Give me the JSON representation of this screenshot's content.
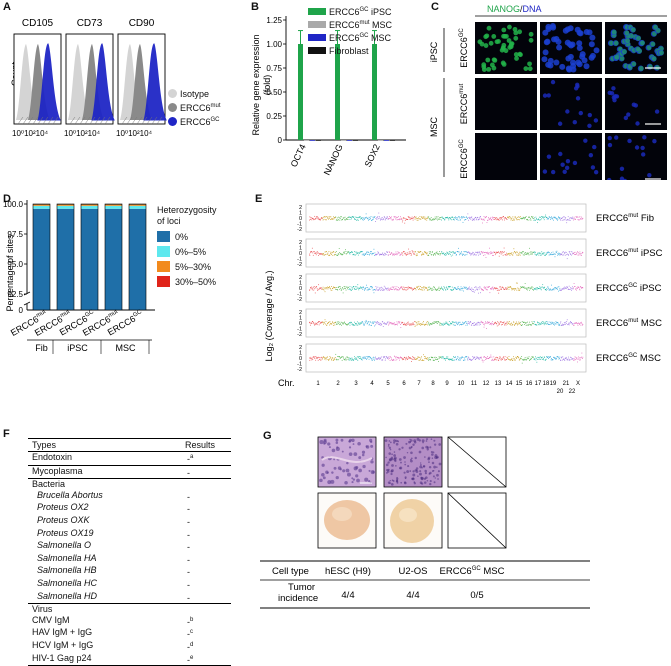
{
  "panels": {
    "A": "A",
    "B": "B",
    "C": "C",
    "D": "D",
    "E": "E",
    "F": "F",
    "G": "G"
  },
  "panelA": {
    "ylabel": "Count",
    "markers": [
      "CD105",
      "CD73",
      "CD90"
    ],
    "xtick": "10⁰10²10⁴",
    "legend": [
      {
        "label": "Isotype",
        "color": "#d4d4d4"
      },
      {
        "label": "ERCC6",
        "sup": "mut",
        "color": "#8a8a8a"
      },
      {
        "label": "ERCC6",
        "sup": "GC",
        "color": "#1f26c6"
      }
    ]
  },
  "panelB": {
    "ylabel": "Relative gene expression",
    "ylabel2": "(fold)",
    "yticks": [
      "0",
      "0.25",
      "0.50",
      "0.75",
      "1.00",
      "1.25"
    ],
    "legend": [
      {
        "label": "ERCC6",
        "sup": "GC",
        "suffix": " iPSC",
        "color": "#1fa44a"
      },
      {
        "label": "ERCC6",
        "sup": "mut",
        "suffix": " MSC",
        "color": "#a9a9a9"
      },
      {
        "label": "ERCC6",
        "sup": "GC",
        "suffix": " MSC",
        "color": "#1f26c6"
      },
      {
        "label": "Fibroblast",
        "sup": "",
        "suffix": "",
        "color": "#111111"
      }
    ]
  },
  "chart_data": {
    "type": "bar",
    "categories": [
      "OCT4",
      "NANOG",
      "SOX2"
    ],
    "ylim": [
      0,
      1.25
    ],
    "series": [
      {
        "name": "ERCC6GC iPSC",
        "values": [
          1.0,
          1.0,
          1.0
        ],
        "error": [
          0.14,
          0.14,
          0.14
        ]
      },
      {
        "name": "ERCC6mut MSC",
        "values": [
          0.0,
          0.0,
          0.0
        ]
      },
      {
        "name": "ERCC6GC MSC",
        "values": [
          0.0,
          0.0,
          0.0
        ]
      },
      {
        "name": "Fibroblast",
        "values": [
          0.0,
          0.0,
          0.0
        ]
      }
    ]
  },
  "panelC": {
    "title_green": "NANOG",
    "title_sep": "/",
    "title_blue": "DNA",
    "groups": [
      "iPSC",
      "MSC"
    ],
    "rows": [
      {
        "label": "ERCC6",
        "sup": "GC"
      },
      {
        "label": "ERCC6",
        "sup": "mut"
      },
      {
        "label": "ERCC6",
        "sup": "GC"
      }
    ]
  },
  "panelD": {
    "ylabel": "Percentage of sites",
    "yticks": [
      "92.5",
      "95.0",
      "97.5",
      "100.0"
    ],
    "ytick_zero": "0",
    "legend_title": "Heterozygosity",
    "legend_title2": "of loci",
    "legend": [
      {
        "label": "0%",
        "color": "#1f6fa8"
      },
      {
        "label": "0%–5%",
        "color": "#5ee8ee"
      },
      {
        "label": "5%–30%",
        "color": "#f28a1d"
      },
      {
        "label": "30%–50%",
        "color": "#e0241a"
      }
    ],
    "bars": [
      {
        "label": "ERCC6",
        "sup": "mut"
      },
      {
        "label": "ERCC6",
        "sup": "mut"
      },
      {
        "label": "ERCC6",
        "sup": "GC"
      },
      {
        "label": "ERCC6",
        "sup": "mut"
      },
      {
        "label": "ERCC6",
        "sup": "GC"
      }
    ],
    "groups": [
      "Fib",
      "iPSC",
      "MSC"
    ]
  },
  "panelE": {
    "ylabel": "Log₂ (Coverage / Avg.)",
    "yticks": [
      "2",
      "1",
      "0",
      "-1",
      "-2"
    ],
    "chr_label": "Chr.",
    "chrs_top": [
      "1",
      "2",
      "3",
      "4",
      "5",
      "6",
      "7",
      "8",
      "9",
      "10",
      "11",
      "12",
      "13",
      "14",
      "15",
      "16",
      "17",
      "18",
      "19",
      "21",
      "X"
    ],
    "chrs_bottom": [
      "20",
      "22"
    ],
    "tracks": [
      {
        "label": "ERCC6",
        "sup": "mut",
        "suffix": " Fib"
      },
      {
        "label": "ERCC6",
        "sup": "mut",
        "suffix": " iPSC"
      },
      {
        "label": "ERCC6",
        "sup": "GC",
        "suffix": " iPSC"
      },
      {
        "label": "ERCC6",
        "sup": "mut",
        "suffix": " MSC"
      },
      {
        "label": "ERCC6",
        "sup": "GC",
        "suffix": " MSC"
      }
    ]
  },
  "panelF": {
    "header": [
      "Types",
      "Results"
    ],
    "rows": [
      {
        "type": "Endotoxin",
        "result": "-",
        "note": "a",
        "italic": false,
        "section_end": true
      },
      {
        "type": "Mycoplasma",
        "result": "-",
        "note": "",
        "italic": false,
        "section_end": true
      },
      {
        "type": "Bacteria",
        "result": "",
        "note": "",
        "italic": false,
        "section_end": false
      },
      {
        "type": "Brucella Abortus",
        "result": "-",
        "note": "",
        "italic": true,
        "section_end": false
      },
      {
        "type": "Proteus OX2",
        "result": "-",
        "note": "",
        "italic": true,
        "section_end": false
      },
      {
        "type": "Proteus OXK",
        "result": "-",
        "note": "",
        "italic": true,
        "section_end": false
      },
      {
        "type": "Proteus OX19",
        "result": "-",
        "note": "",
        "italic": true,
        "section_end": false
      },
      {
        "type": "Salmonella O",
        "result": "-",
        "note": "",
        "italic": true,
        "section_end": false
      },
      {
        "type": "Salmonella HA",
        "result": "-",
        "note": "",
        "italic": true,
        "section_end": false
      },
      {
        "type": "Salmonella HB",
        "result": "-",
        "note": "",
        "italic": true,
        "section_end": false
      },
      {
        "type": "Salmonella HC",
        "result": "-",
        "note": "",
        "italic": true,
        "section_end": false
      },
      {
        "type": "Salmonella HD",
        "result": "-",
        "note": "",
        "italic": true,
        "section_end": true
      },
      {
        "type": "Virus",
        "result": "",
        "note": "",
        "italic": false,
        "section_end": false
      },
      {
        "type": "CMV IgM",
        "result": "-",
        "note": "b",
        "italic": false,
        "section_end": false
      },
      {
        "type": "HAV IgM + IgG",
        "result": "-",
        "note": "c",
        "italic": false,
        "section_end": false
      },
      {
        "type": "HCV IgM + IgG",
        "result": "-",
        "note": "d",
        "italic": false,
        "section_end": false
      },
      {
        "type": "HIV-1 Gag p24",
        "result": "-",
        "note": "e",
        "italic": false,
        "section_end": false
      }
    ]
  },
  "panelG": {
    "row1_label": "Cell type",
    "row2_label": "Tumor",
    "row2_label2": "incidence",
    "columns": [
      {
        "name": "hESC (H9)",
        "sup": "",
        "suffix": "",
        "value": "4/4"
      },
      {
        "name": "U2-OS",
        "sup": "",
        "suffix": "",
        "value": "4/4"
      },
      {
        "name": "ERCC6",
        "sup": "GC",
        "suffix": " MSC",
        "value": "0/5"
      }
    ]
  },
  "colors": {
    "green": "#1fa44a",
    "blue": "#1f26c6",
    "grey": "#8a8a8a",
    "light": "#d4d4d4",
    "cnv": [
      "#e8474a",
      "#c79a1a",
      "#4fb04a",
      "#16b5a0",
      "#2aa3d8",
      "#9a6ee0",
      "#e25fb8"
    ]
  }
}
